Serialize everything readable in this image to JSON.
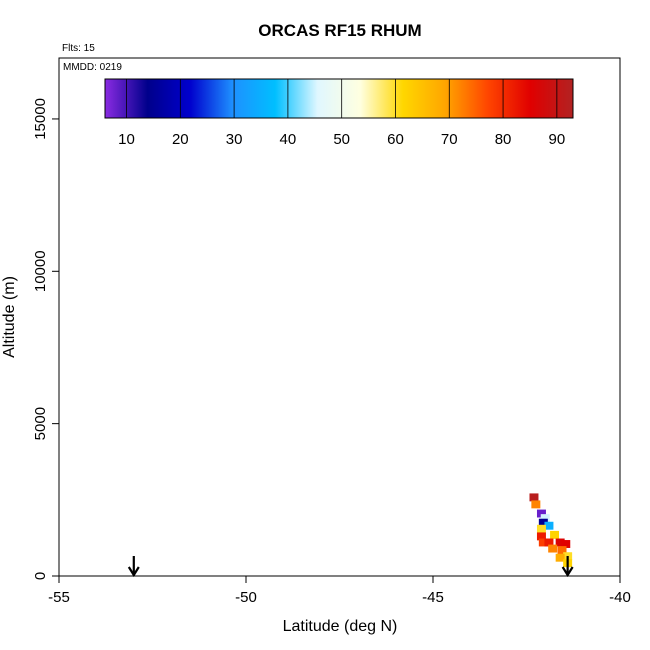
{
  "chart_data": {
    "type": "scatter",
    "title": "ORCAS RF15 RHUM",
    "flights_label": "Flts: 15",
    "date_label": "MMDD: 0219",
    "xlabel": "Latitude (deg N)",
    "ylabel": "Altitude (m)",
    "xlim": [
      -55,
      -40
    ],
    "ylim": [
      0,
      17000
    ],
    "xticks": [
      -55,
      -50,
      -45,
      -40
    ],
    "yticks": [
      0,
      5000,
      10000,
      15000
    ],
    "colorbar": {
      "min": 6,
      "max": 93,
      "ticks": [
        10,
        20,
        30,
        40,
        50,
        60,
        70,
        80,
        90
      ],
      "colors": [
        "#8a2be2",
        "#00008b",
        "#0000cd",
        "#1e90ff",
        "#00bfff",
        "#e0f7ff",
        "#ffffe0",
        "#ffd700",
        "#ffa500",
        "#ff4500",
        "#e00000",
        "#b22222"
      ]
    },
    "arrows": [
      {
        "x": -53.0,
        "direction": "down"
      },
      {
        "x": -41.4,
        "direction": "down"
      }
    ],
    "points": [
      {
        "lat": -42.3,
        "alt": 2580,
        "rh": 92
      },
      {
        "lat": -42.25,
        "alt": 2350,
        "rh": 72
      },
      {
        "lat": -42.1,
        "alt": 2050,
        "rh": 8
      },
      {
        "lat": -42.0,
        "alt": 1900,
        "rh": 45
      },
      {
        "lat": -42.05,
        "alt": 1750,
        "rh": 15
      },
      {
        "lat": -41.9,
        "alt": 1650,
        "rh": 35
      },
      {
        "lat": -42.1,
        "alt": 1550,
        "rh": 60
      },
      {
        "lat": -41.75,
        "alt": 1350,
        "rh": 62
      },
      {
        "lat": -42.1,
        "alt": 1300,
        "rh": 82
      },
      {
        "lat": -42.05,
        "alt": 1100,
        "rh": 78
      },
      {
        "lat": -41.9,
        "alt": 1100,
        "rh": 82
      },
      {
        "lat": -41.6,
        "alt": 1100,
        "rh": 86
      },
      {
        "lat": -41.45,
        "alt": 1050,
        "rh": 85
      },
      {
        "lat": -41.8,
        "alt": 900,
        "rh": 72
      },
      {
        "lat": -41.55,
        "alt": 850,
        "rh": 74
      },
      {
        "lat": -41.4,
        "alt": 650,
        "rh": 60
      },
      {
        "lat": -41.6,
        "alt": 600,
        "rh": 68
      },
      {
        "lat": -41.4,
        "alt": 420,
        "rh": 62
      }
    ]
  }
}
